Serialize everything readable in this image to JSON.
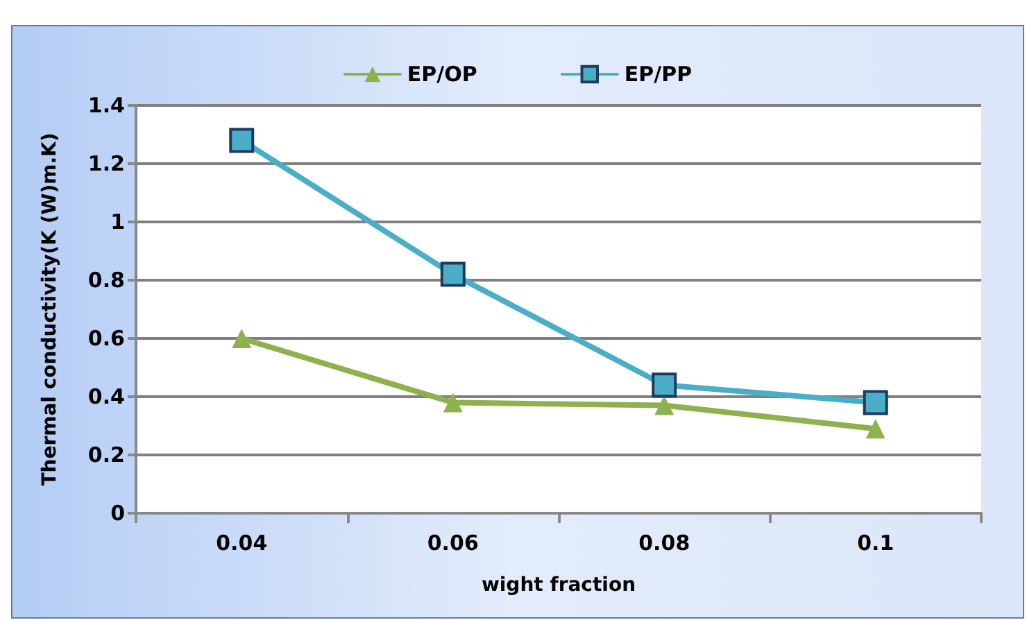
{
  "chart_data": {
    "type": "line",
    "xlabel": "wight fraction",
    "ylabel": "Thermal conductivity(K (W)m.K)",
    "categories": [
      "0.04",
      "0.06",
      "0.08",
      "0.1"
    ],
    "series": [
      {
        "name": "EP/OP",
        "color": "#8db24d",
        "marker": "triangle",
        "values": [
          0.6,
          0.38,
          0.37,
          0.29
        ]
      },
      {
        "name": "EP/PP",
        "color": "#4aaec8",
        "marker": "square",
        "values": [
          1.28,
          0.82,
          0.44,
          0.38
        ]
      }
    ],
    "ylim": [
      0,
      1.4
    ],
    "yticks": [
      0,
      0.2,
      0.4,
      0.6,
      0.8,
      1,
      1.2,
      1.4
    ],
    "grid": "y",
    "legend": "top",
    "line_style": "solid"
  }
}
